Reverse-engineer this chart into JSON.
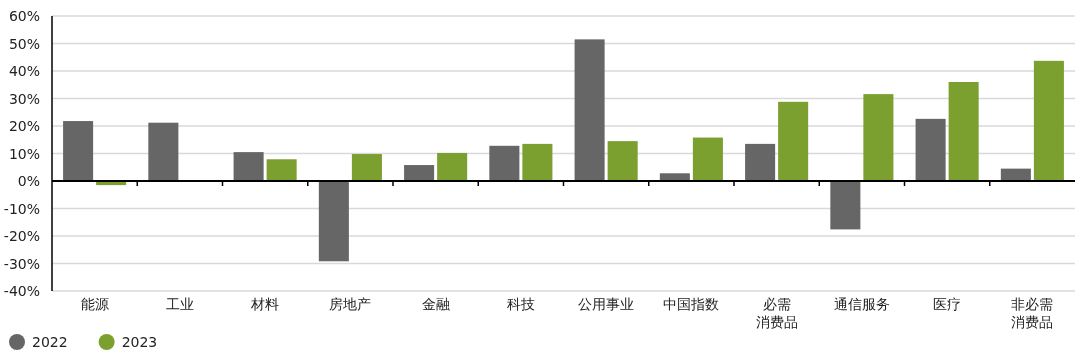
{
  "chart_data": {
    "type": "bar",
    "categories": [
      "能源",
      "工业",
      "材料",
      "房地产",
      "金融",
      "科技",
      "公用事业",
      "中国指数",
      "必需消费品",
      "通信服务",
      "医疗",
      "非必需消费品"
    ],
    "series": [
      {
        "name": "2022",
        "color": "#666666",
        "values": [
          21.8,
          21.2,
          10.5,
          -29.2,
          5.8,
          12.8,
          51.5,
          2.8,
          13.5,
          -17.6,
          22.6,
          4.5
        ]
      },
      {
        "name": "2023",
        "color": "#7ba030",
        "values": [
          -1.5,
          null,
          7.9,
          9.8,
          10.2,
          13.5,
          14.5,
          15.8,
          28.8,
          31.6,
          36,
          43.7
        ]
      }
    ],
    "ylim": [
      -40,
      60
    ],
    "yticks": [
      {
        "value": -40,
        "label": "-40%"
      },
      {
        "value": -30,
        "label": "-30%"
      },
      {
        "value": -20,
        "label": "-20%"
      },
      {
        "value": -10,
        "label": "-10%"
      },
      {
        "value": 0,
        "label": "0%"
      },
      {
        "value": 10,
        "label": "10%"
      },
      {
        "value": 20,
        "label": "20%"
      },
      {
        "value": 30,
        "label": "30%"
      },
      {
        "value": 40,
        "label": "40%"
      },
      {
        "value": 50,
        "label": "50%"
      },
      {
        "value": 60,
        "label": "60%"
      }
    ],
    "grid": "y",
    "legend": "bottom left"
  }
}
